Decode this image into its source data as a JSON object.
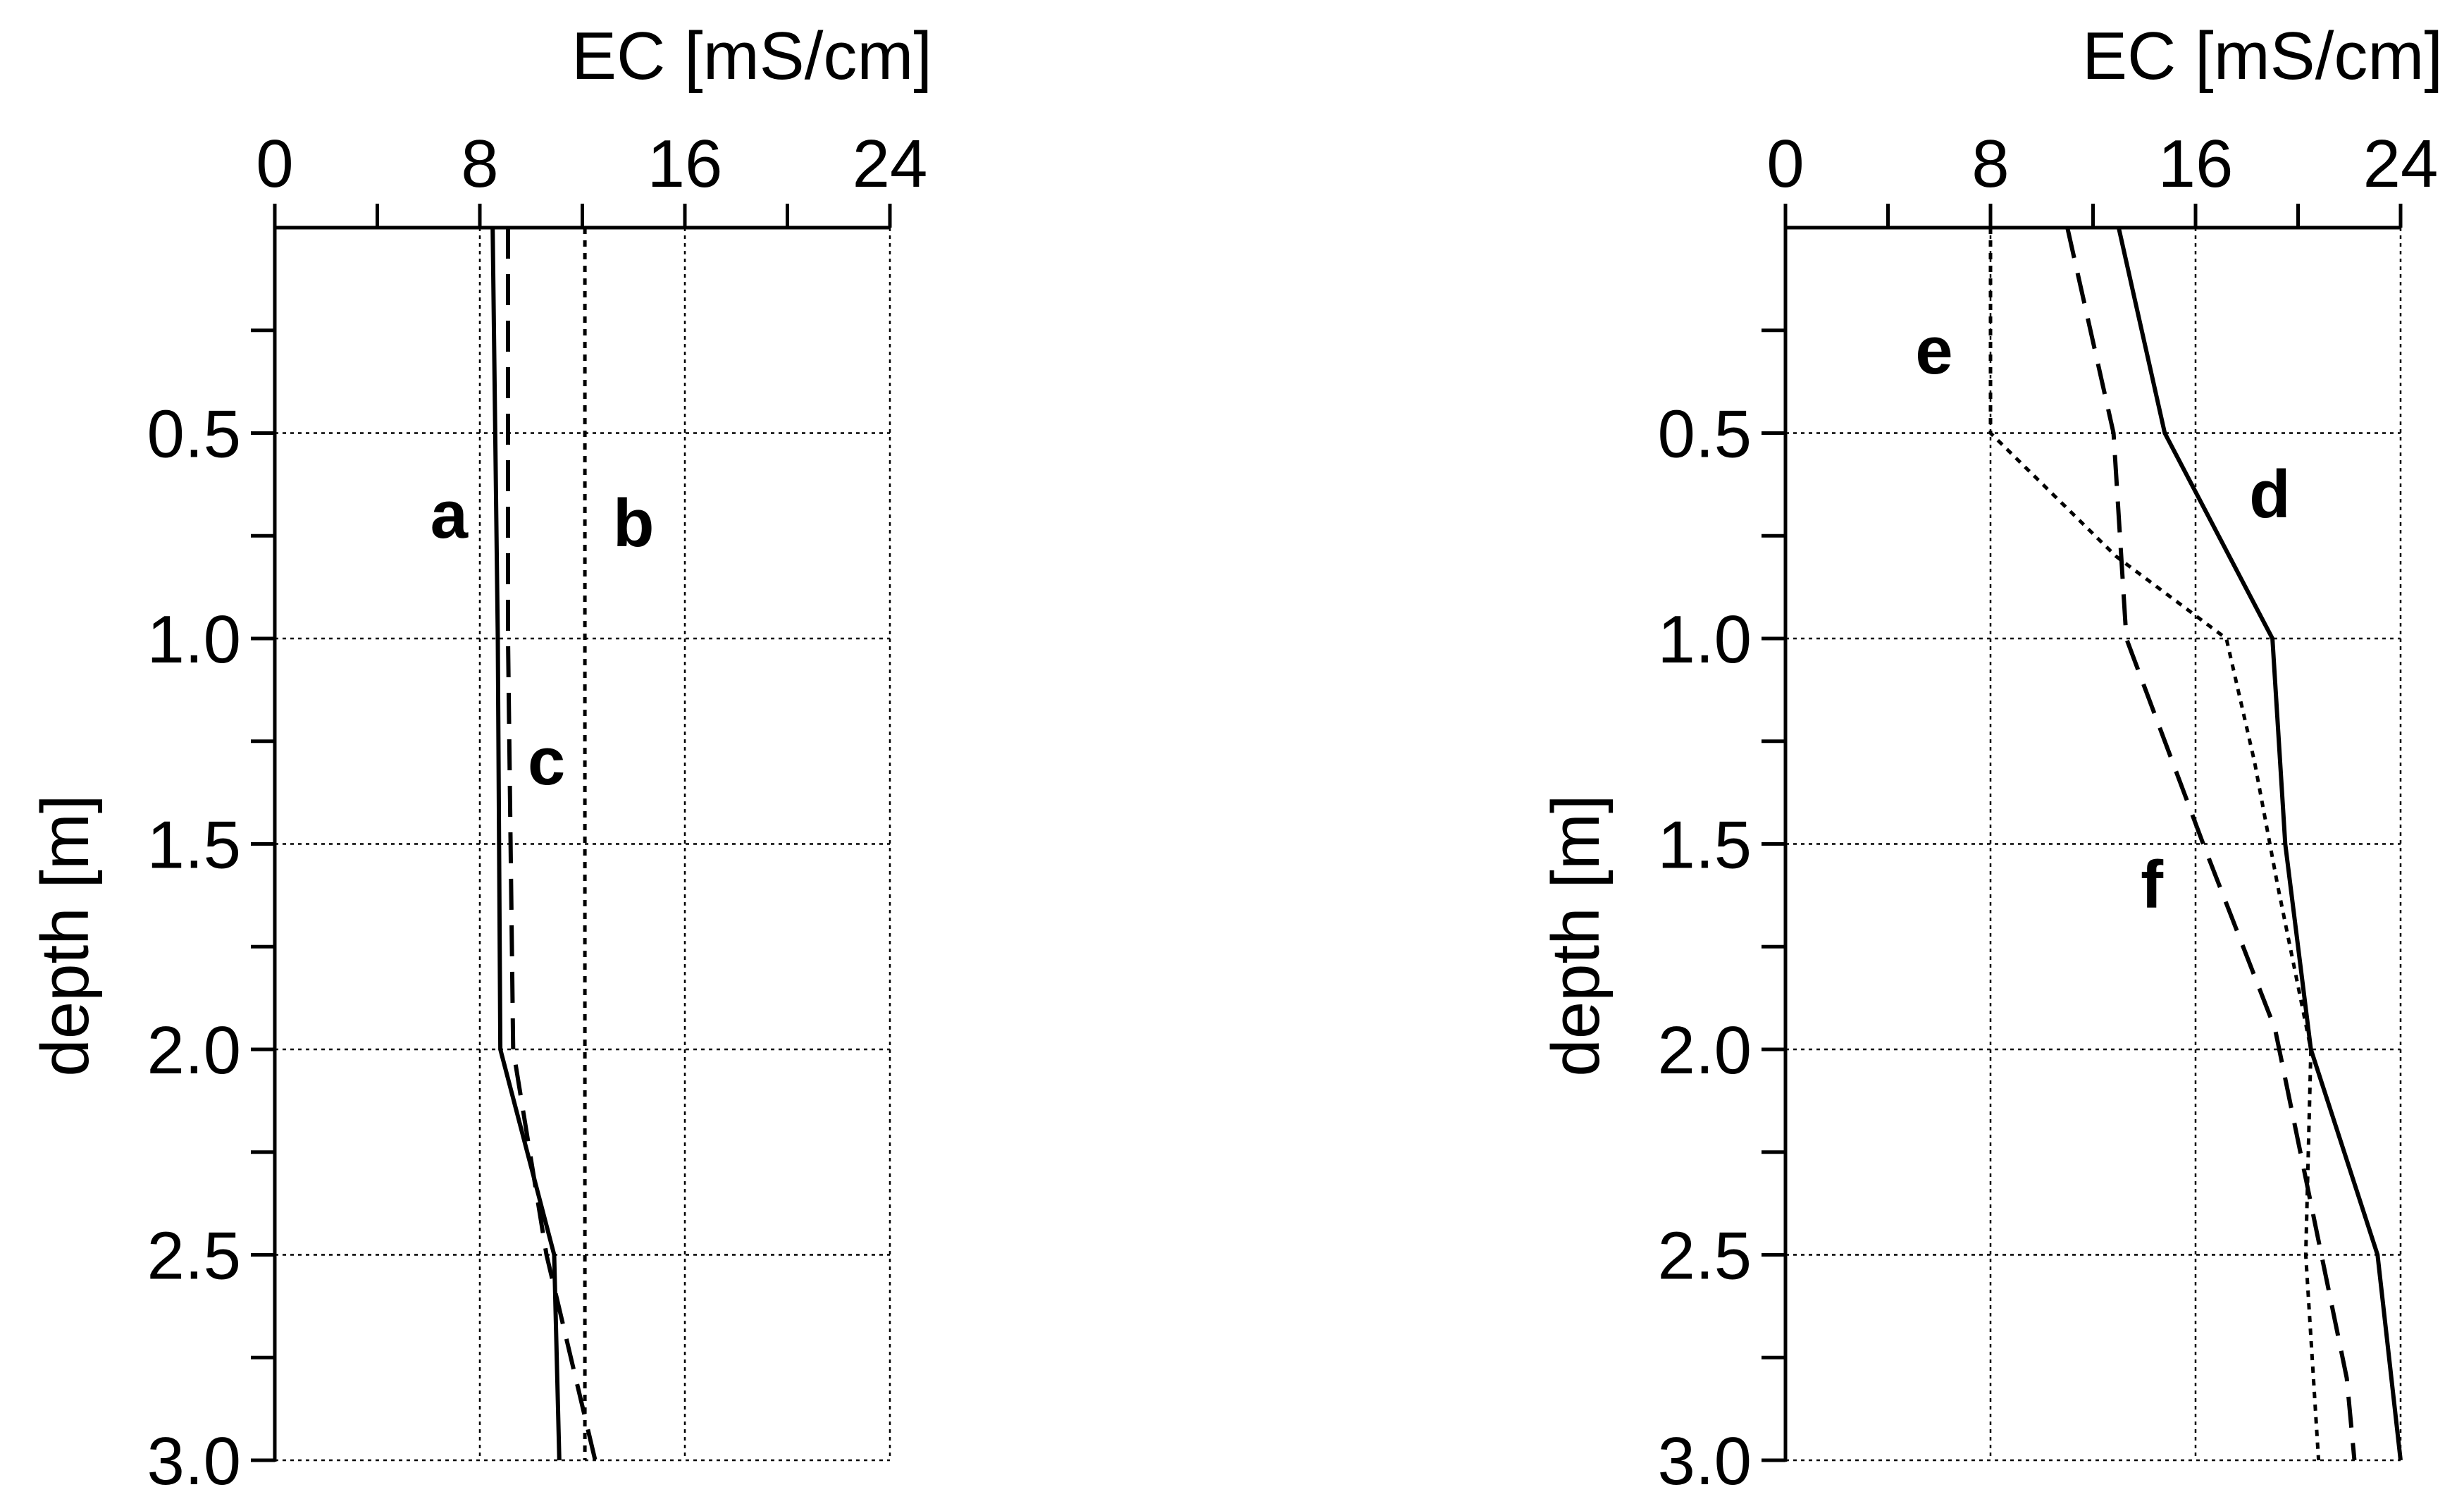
{
  "chart_data": [
    {
      "type": "line",
      "panel": "left",
      "xlabel": "EC [mS/cm]",
      "ylabel": "depth [m]",
      "xlim": [
        0,
        24
      ],
      "ylim": [
        0,
        3.0
      ],
      "y_inverted": true,
      "x_axis_position": "top",
      "x_ticks": [
        0,
        8,
        16,
        24
      ],
      "x_tick_labels": [
        "0",
        "8",
        "16",
        "24"
      ],
      "y_ticks": [
        0.5,
        1.0,
        1.5,
        2.0,
        2.5,
        3.0
      ],
      "y_tick_labels": [
        "0.5",
        "1.0",
        "1.5",
        "2.0",
        "2.5",
        "3.0"
      ],
      "grid": true,
      "series": [
        {
          "name": "a",
          "style": "solid",
          "points": [
            [
              8.5,
              0
            ],
            [
              8.7,
              1.0
            ],
            [
              8.8,
              2.0
            ],
            [
              10.9,
              2.5
            ],
            [
              11.1,
              3.0
            ]
          ]
        },
        {
          "name": "b",
          "style": "dotted",
          "points": [
            [
              12.1,
              0
            ],
            [
              12.1,
              3.0
            ]
          ]
        },
        {
          "name": "c",
          "style": "dashed",
          "points": [
            [
              9.1,
              0
            ],
            [
              9.1,
              1.0
            ],
            [
              9.3,
              2.0
            ],
            [
              10.6,
              2.5
            ],
            [
              12.5,
              3.0
            ]
          ]
        }
      ],
      "annotations": [
        {
          "text": "a",
          "x": 6.8,
          "y": 0.7
        },
        {
          "text": "b",
          "x": 14.0,
          "y": 0.72
        },
        {
          "text": "c",
          "x": 10.6,
          "y": 1.3
        }
      ]
    },
    {
      "type": "line",
      "panel": "right",
      "xlabel": "EC [mS/cm]",
      "ylabel": "depth [m]",
      "xlim": [
        0,
        24
      ],
      "ylim": [
        0,
        3.0
      ],
      "y_inverted": true,
      "x_axis_position": "top",
      "x_ticks": [
        0,
        8,
        16,
        24
      ],
      "x_tick_labels": [
        "0",
        "8",
        "16",
        "24"
      ],
      "y_ticks": [
        0.5,
        1.0,
        1.5,
        2.0,
        2.5,
        3.0
      ],
      "y_tick_labels": [
        "0.5",
        "1.0",
        "1.5",
        "2.0",
        "2.5",
        "3.0"
      ],
      "grid": true,
      "series": [
        {
          "name": "d",
          "style": "solid",
          "points": [
            [
              13.0,
              0
            ],
            [
              14.8,
              0.5
            ],
            [
              19.0,
              1.0
            ],
            [
              19.5,
              1.5
            ],
            [
              20.5,
              2.0
            ],
            [
              23.1,
              2.5
            ],
            [
              24.0,
              3.0
            ]
          ]
        },
        {
          "name": "e",
          "style": "dotted",
          "points": [
            [
              8.0,
              0
            ],
            [
              8.0,
              0.5
            ],
            [
              12.9,
              0.8
            ],
            [
              17.2,
              1.0
            ],
            [
              18.3,
              1.3
            ],
            [
              19.2,
              1.6
            ],
            [
              20.5,
              2.0
            ],
            [
              20.3,
              2.5
            ],
            [
              20.8,
              3.0
            ]
          ]
        },
        {
          "name": "f",
          "style": "dashed",
          "points": [
            [
              11.0,
              0
            ],
            [
              12.8,
              0.5
            ],
            [
              13.3,
              1.0
            ],
            [
              16.3,
              1.5
            ],
            [
              19.1,
              1.95
            ],
            [
              21.9,
              2.8
            ],
            [
              22.2,
              3.0
            ]
          ]
        }
      ],
      "annotations": [
        {
          "text": "e",
          "x": 5.8,
          "y": 0.3
        },
        {
          "text": "d",
          "x": 18.9,
          "y": 0.65
        },
        {
          "text": "f",
          "x": 14.3,
          "y": 1.6
        }
      ]
    }
  ]
}
